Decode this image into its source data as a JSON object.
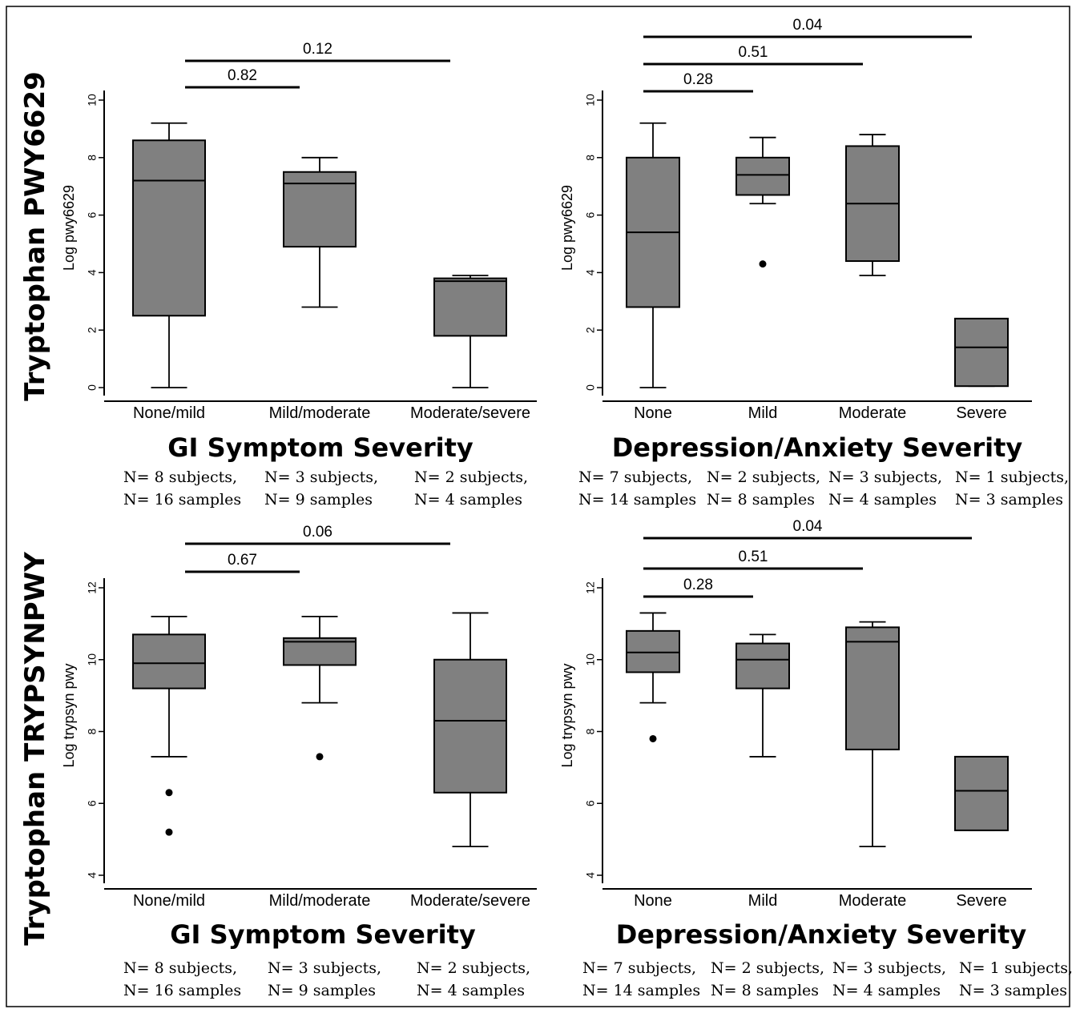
{
  "row_titles": [
    "Tryptophan PWY6629",
    "Tryptophan TRYPSYNPWY"
  ],
  "chart_data": [
    {
      "type": "box",
      "ylabel": "Log pwy6629",
      "xtitle": "GI Symptom Severity",
      "ylim": [
        0,
        10
      ],
      "yticks": [
        "0",
        "2",
        "4",
        "6",
        "8",
        "10"
      ],
      "categories": [
        "None/mild",
        "Mild/moderate",
        "Moderate/severe"
      ],
      "boxes": [
        {
          "lower_whisker": 0,
          "q1": 2.5,
          "median": 7.2,
          "q3": 8.6,
          "upper_whisker": 9.2,
          "outliers": []
        },
        {
          "lower_whisker": 2.8,
          "q1": 4.9,
          "median": 7.1,
          "q3": 7.5,
          "upper_whisker": 8.0,
          "outliers": []
        },
        {
          "lower_whisker": 0,
          "q1": 1.8,
          "median": 3.7,
          "q3": 3.8,
          "upper_whisker": 3.9,
          "outliers": []
        }
      ],
      "comparisons": [
        {
          "from": 0,
          "to": 1,
          "p": "0.82"
        },
        {
          "from": 0,
          "to": 2,
          "p": "0.12"
        }
      ],
      "n_labels": [
        [
          "N= 8 subjects,",
          "N= 16 samples"
        ],
        [
          "N= 3 subjects,",
          "N= 9 samples"
        ],
        [
          "N= 2 subjects,",
          "N= 4 samples"
        ]
      ]
    },
    {
      "type": "box",
      "ylabel": "Log pwy6629",
      "xtitle": "Depression/Anxiety Severity",
      "ylim": [
        0,
        10
      ],
      "yticks": [
        "0",
        "2",
        "4",
        "6",
        "8",
        "10"
      ],
      "categories": [
        "None",
        "Mild",
        "Moderate",
        "Severe"
      ],
      "boxes": [
        {
          "lower_whisker": 0,
          "q1": 2.8,
          "median": 5.4,
          "q3": 8.0,
          "upper_whisker": 9.2,
          "outliers": []
        },
        {
          "lower_whisker": 6.4,
          "q1": 6.7,
          "median": 7.4,
          "q3": 8.0,
          "upper_whisker": 8.7,
          "outliers": [
            4.3
          ]
        },
        {
          "lower_whisker": 3.9,
          "q1": 4.4,
          "median": 6.4,
          "q3": 8.4,
          "upper_whisker": 8.8,
          "outliers": []
        },
        {
          "lower_whisker": 0.05,
          "q1": 0.05,
          "median": 1.4,
          "q3": 2.4,
          "upper_whisker": 2.4,
          "outliers": []
        }
      ],
      "comparisons": [
        {
          "from": 0,
          "to": 1,
          "p": "0.28"
        },
        {
          "from": 0,
          "to": 2,
          "p": "0.51"
        },
        {
          "from": 0,
          "to": 3,
          "p": "0.04"
        }
      ],
      "n_labels": [
        [
          "N= 7 subjects,",
          "N= 14 samples"
        ],
        [
          "N= 2 subjects,",
          "N= 8 samples"
        ],
        [
          "N= 3 subjects,",
          "N= 4 samples"
        ],
        [
          "N= 1 subjects,",
          "N= 3 samples"
        ]
      ]
    },
    {
      "type": "box",
      "ylabel": "Log trypsyn pwy",
      "xtitle": "GI Symptom Severity",
      "ylim": [
        4,
        12
      ],
      "yticks": [
        "4",
        "6",
        "8",
        "10",
        "12"
      ],
      "categories": [
        "None/mild",
        "Mild/moderate",
        "Moderate/severe"
      ],
      "boxes": [
        {
          "lower_whisker": 7.3,
          "q1": 9.2,
          "median": 9.9,
          "q3": 10.7,
          "upper_whisker": 11.2,
          "outliers": [
            6.3,
            5.2
          ]
        },
        {
          "lower_whisker": 8.8,
          "q1": 9.85,
          "median": 10.5,
          "q3": 10.6,
          "upper_whisker": 11.2,
          "outliers": [
            7.3
          ]
        },
        {
          "lower_whisker": 4.8,
          "q1": 6.3,
          "median": 8.3,
          "q3": 10.0,
          "upper_whisker": 11.3,
          "outliers": []
        }
      ],
      "comparisons": [
        {
          "from": 0,
          "to": 1,
          "p": "0.67"
        },
        {
          "from": 0,
          "to": 2,
          "p": "0.06"
        }
      ],
      "n_labels": [
        [
          "N= 8 subjects,",
          "N= 16 samples"
        ],
        [
          "N= 3 subjects,",
          "N= 9 samples"
        ],
        [
          "N= 2 subjects,",
          "N= 4 samples"
        ]
      ]
    },
    {
      "type": "box",
      "ylabel": "Log trypsyn pwy",
      "xtitle": "Depression/Anxiety Severity",
      "ylim": [
        4,
        12
      ],
      "yticks": [
        "4",
        "6",
        "8",
        "10",
        "12"
      ],
      "categories": [
        "None",
        "Mild",
        "Moderate",
        "Severe"
      ],
      "boxes": [
        {
          "lower_whisker": 8.8,
          "q1": 9.65,
          "median": 10.2,
          "q3": 10.8,
          "upper_whisker": 11.3,
          "outliers": [
            7.8
          ]
        },
        {
          "lower_whisker": 7.3,
          "q1": 9.2,
          "median": 10.0,
          "q3": 10.45,
          "upper_whisker": 10.7,
          "outliers": []
        },
        {
          "lower_whisker": 4.8,
          "q1": 7.5,
          "median": 10.5,
          "q3": 10.9,
          "upper_whisker": 11.05,
          "outliers": []
        },
        {
          "lower_whisker": 5.25,
          "q1": 5.25,
          "median": 6.35,
          "q3": 7.3,
          "upper_whisker": 7.3,
          "outliers": []
        }
      ],
      "comparisons": [
        {
          "from": 0,
          "to": 1,
          "p": "0.28"
        },
        {
          "from": 0,
          "to": 2,
          "p": "0.51"
        },
        {
          "from": 0,
          "to": 3,
          "p": "0.04"
        }
      ],
      "n_labels": [
        [
          "N= 7 subjects,",
          "N= 14 samples"
        ],
        [
          "N= 2 subjects,",
          "N= 8 samples"
        ],
        [
          "N= 3 subjects,",
          "N= 4 samples"
        ],
        [
          "N= 1 subjects,",
          "N= 3 samples"
        ]
      ]
    }
  ]
}
